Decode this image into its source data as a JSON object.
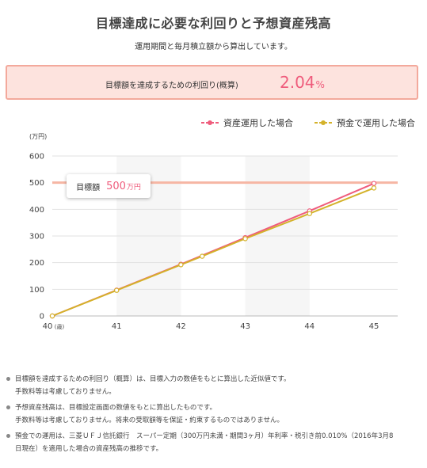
{
  "header": {
    "title": "目標達成に必要な利回りと予想資産残高",
    "subtitle": "運用期間と毎月積立額から算出しています。"
  },
  "result": {
    "label": "目標額を達成するための利回り(概算)",
    "value": "2.04",
    "unit": "%"
  },
  "legend": {
    "asset": "資産運用した場合",
    "deposit": "預金で運用した場合"
  },
  "goal": {
    "label": "目標額",
    "value": "500",
    "unit": "万円"
  },
  "colors": {
    "asset_line": "#ef5c7c",
    "deposit_line": "#d4b22a",
    "goal_line": "#f6b6a4",
    "result_bg": "#fde3de",
    "result_border": "#f3a99c"
  },
  "chart_data": {
    "type": "line",
    "ylabel": "(万円)",
    "xlabel": "",
    "x_ticks": [
      "40",
      "41",
      "42",
      "43",
      "44",
      "45"
    ],
    "x_first_unit": "(歳)",
    "y_ticks": [
      "0",
      "100",
      "200",
      "300",
      "400",
      "500",
      "600"
    ],
    "ylim": [
      0,
      600
    ],
    "xlim": [
      40,
      45
    ],
    "goal_value": 500,
    "series": [
      {
        "name": "資産運用した場合",
        "x": [
          40,
          41,
          42,
          43,
          44,
          45
        ],
        "values": [
          0,
          97,
          194,
          294,
          394,
          497
        ]
      },
      {
        "name": "預金で運用した場合",
        "x": [
          40,
          41,
          42,
          42.33,
          43,
          44,
          45
        ],
        "values": [
          0,
          96,
          192,
          224,
          290,
          384,
          480
        ]
      }
    ]
  },
  "notes": [
    {
      "line1": "目標額を達成するための利回り（概算）は、目標入力の数値をもとに算出した近似値です。",
      "line2": "手数料等は考慮しておりません。"
    },
    {
      "line1": "予想資産残高は、目標設定画面の数値をもとに算出したものです。",
      "line2": "手数料等は考慮しておりません。将来の受取額等を保証・約束するものではありません。"
    },
    {
      "line1": "預金での運用は、三菱ＵＦＪ信託銀行　スーパー定期（300万円未満・期間3ヶ月）年利率・税引き前0.010%（2016年3月8",
      "line2": "日現在）を適用した場合の資産残高の推移です。"
    }
  ]
}
